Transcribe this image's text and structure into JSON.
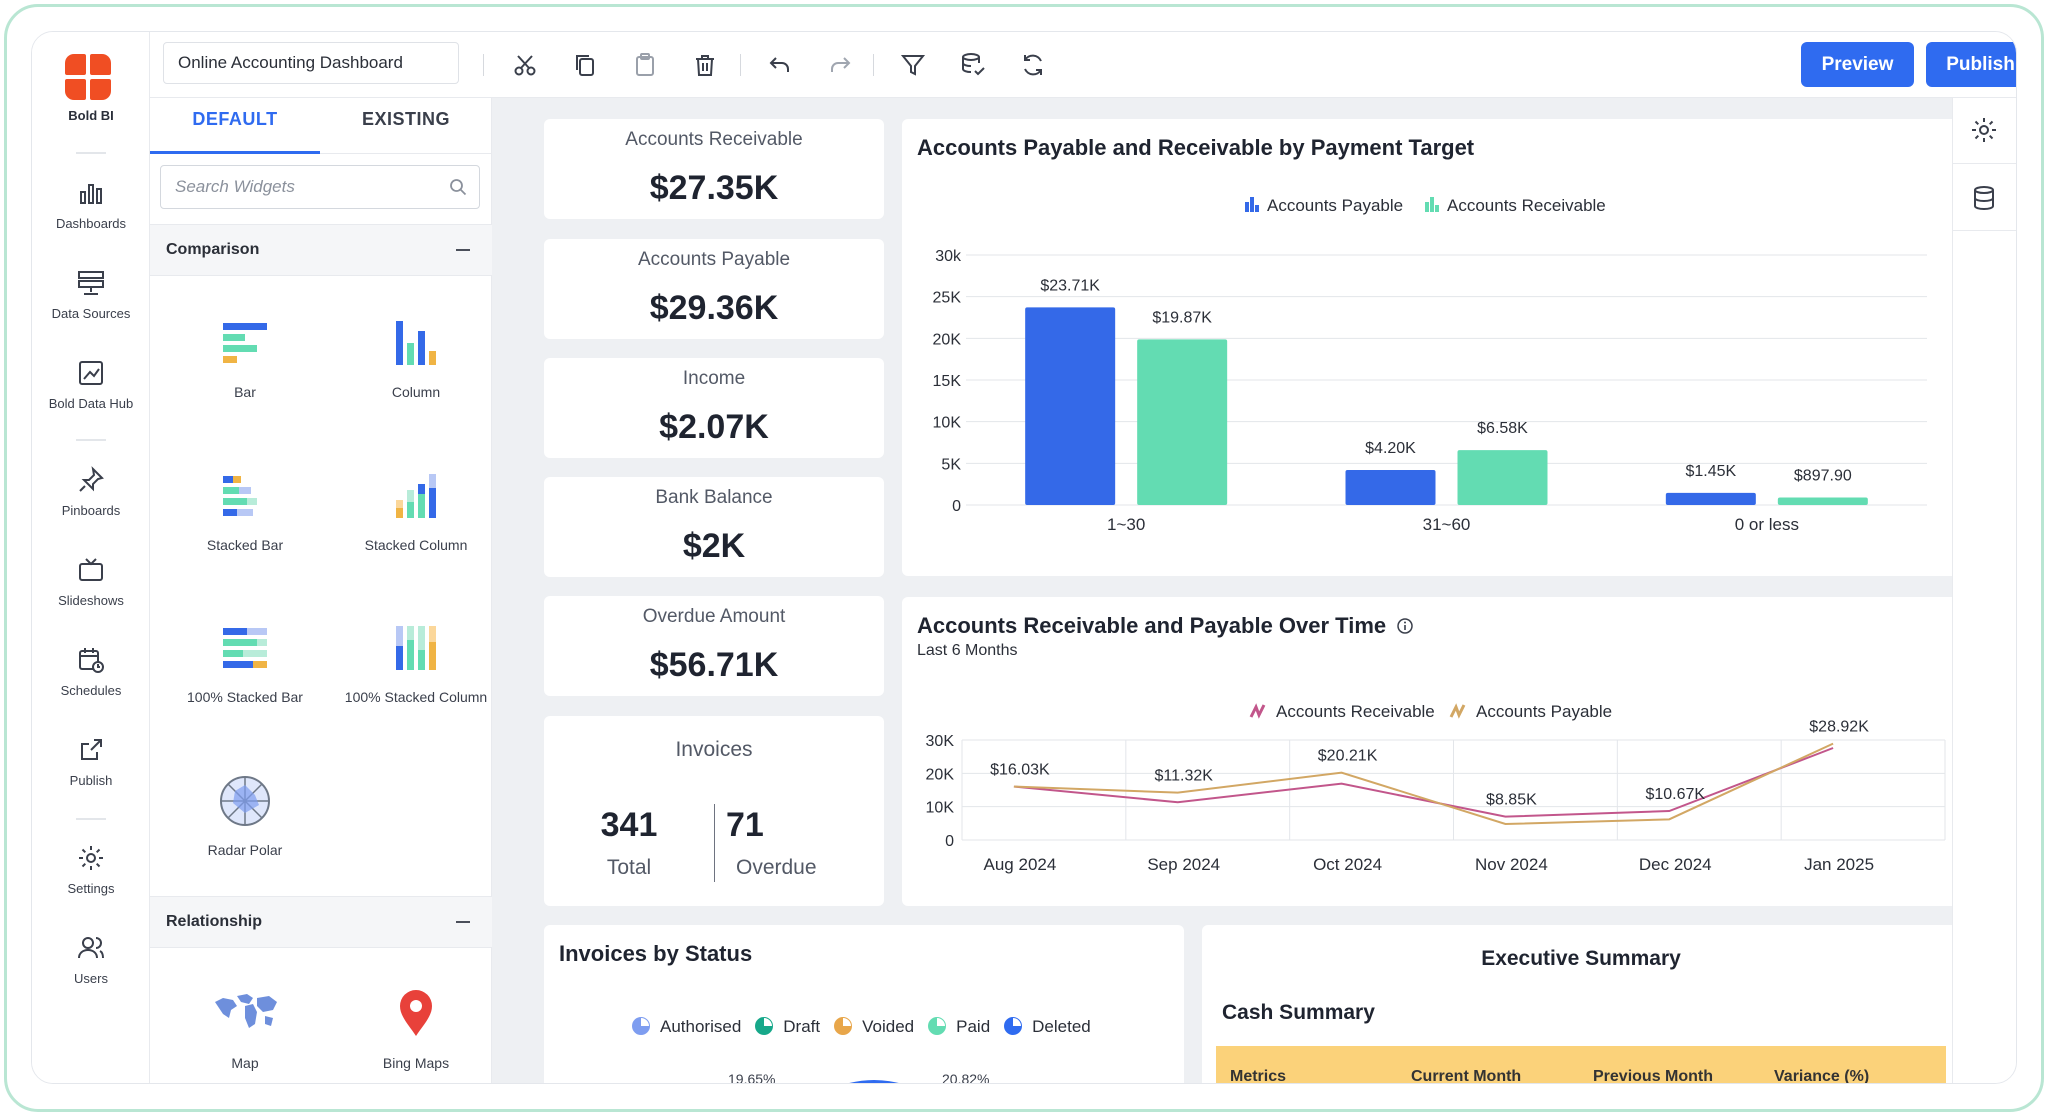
{
  "app": {
    "brand": "Bold BI",
    "dashboard_title": "Online Accounting Dashboard",
    "preview_label": "Preview",
    "publish_label": "Publish"
  },
  "nav": {
    "dashboards": "Dashboards",
    "data_sources": "Data Sources",
    "data_hub": "Bold Data Hub",
    "pinboards": "Pinboards",
    "slideshows": "Slideshows",
    "schedules": "Schedules",
    "publish": "Publish",
    "settings": "Settings",
    "users": "Users"
  },
  "panel": {
    "tab_default": "DEFAULT",
    "tab_existing": "EXISTING",
    "search_placeholder": "Search Widgets",
    "section_comparison": "Comparison",
    "section_relationship": "Relationship",
    "w_bar": "Bar",
    "w_column": "Column",
    "w_stacked_bar": "Stacked Bar",
    "w_stacked_column": "Stacked Column",
    "w_100_stacked_bar": "100% Stacked Bar",
    "w_100_stacked_column": "100% Stacked Column",
    "w_radar": "Radar Polar",
    "w_map": "Map",
    "w_bing": "Bing Maps"
  },
  "kpis": {
    "receivable_title": "Accounts Receivable",
    "receivable_value": "$27.35K",
    "payable_title": "Accounts Payable",
    "payable_value": "$29.36K",
    "income_title": "Income",
    "income_value": "$2.07K",
    "bank_title": "Bank Balance",
    "bank_value": "$2K",
    "overdue_title": "Overdue Amount",
    "overdue_value": "$56.71K",
    "invoices_title": "Invoices",
    "invoices_total": "341",
    "invoices_total_label": "Total",
    "invoices_overdue": "71",
    "invoices_overdue_label": "Overdue"
  },
  "colors": {
    "primary": "#2f6bf0",
    "payable": "#3469e8",
    "receivable": "#63dcb2",
    "line_receivable": "#c2568b",
    "line_payable": "#d2a764"
  },
  "status_card": {
    "title": "Invoices by Status",
    "legend": [
      "Authorised",
      "Draft",
      "Voided",
      "Paid",
      "Deleted"
    ],
    "legend_colors": [
      "#7e9df0",
      "#17a88a",
      "#e8a64a",
      "#63dcb2",
      "#2f6bf0"
    ],
    "pct_left": "19.65%",
    "pct_right": "20.82%"
  },
  "exec": {
    "title": "Executive Summary",
    "subtitle": "Cash Summary",
    "columns": [
      "Metrics",
      "Current Month",
      "Previous Month",
      "Variance (%)"
    ]
  },
  "chart_data": [
    {
      "type": "bar",
      "title": "Accounts Payable and Receivable by Payment Target",
      "categories": [
        "1~30",
        "31~60",
        "0 or less"
      ],
      "series": [
        {
          "name": "Accounts Payable",
          "values": [
            23710,
            4200,
            1450
          ],
          "labels": [
            "$23.71K",
            "$4.20K",
            "$1.45K"
          ]
        },
        {
          "name": "Accounts Receivable",
          "values": [
            19870,
            6580,
            897.9
          ],
          "labels": [
            "$19.87K",
            "$6.58K",
            "$897.90"
          ]
        }
      ],
      "yticks": [
        "0",
        "5K",
        "10K",
        "15K",
        "20K",
        "25K",
        "30k"
      ],
      "ylim": [
        0,
        30000
      ],
      "legend": "top-center"
    },
    {
      "type": "line",
      "title": "Accounts Receivable and Payable Over Time",
      "subtitle": "Last 6 Months",
      "categories": [
        "Aug 2024",
        "Sep 2024",
        "Oct 2024",
        "Nov 2024",
        "Dec 2024",
        "Jan 2025"
      ],
      "series": [
        {
          "name": "Accounts Receivable",
          "values": [
            16030,
            11320,
            16900,
            7000,
            8700,
            27600
          ]
        },
        {
          "name": "Accounts Payable",
          "values": [
            16030,
            14200,
            20210,
            4800,
            6200,
            28920
          ]
        }
      ],
      "point_labels": [
        "$16.03K",
        "$11.32K",
        "$20.21K",
        "$8.85K",
        "$10.67K",
        "$28.92K"
      ],
      "yticks": [
        "0",
        "10K",
        "20K",
        "30K"
      ],
      "ylim": [
        0,
        30000
      ],
      "legend": "top-center"
    }
  ]
}
